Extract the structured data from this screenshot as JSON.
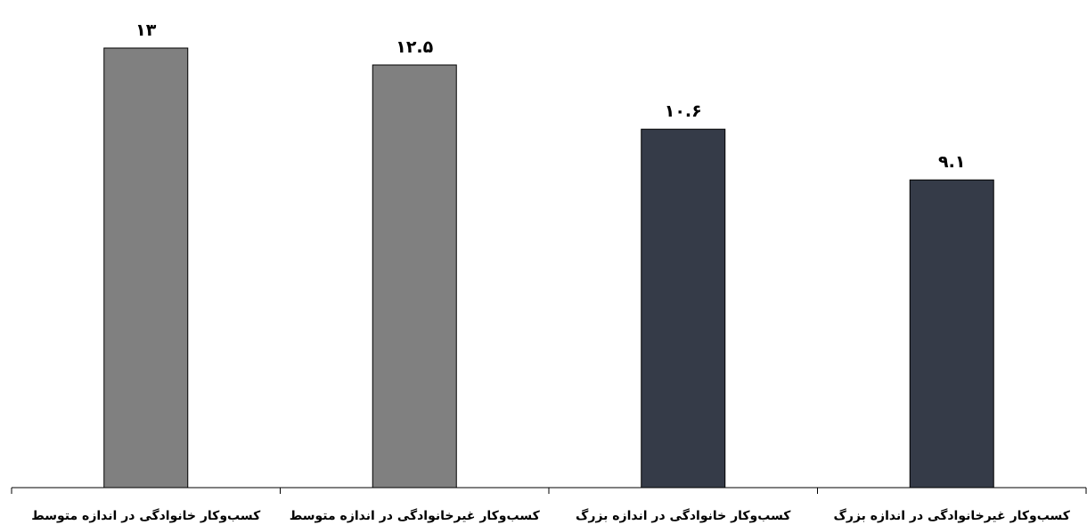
{
  "chart_data": {
    "type": "bar",
    "categories": [
      "کسب‌وکار خانوادگی در اندازه متوسط",
      "کسب‌وکار غیرخانوادگی در اندازه متوسط",
      "کسب‌وکار خانوادگی در اندازه بزرگ",
      "کسب‌وکار غیرخانوادگی در اندازه بزرگ"
    ],
    "values": [
      13,
      12.5,
      10.6,
      9.1
    ],
    "value_labels": [
      "۱۳",
      "۱۲.۵",
      "۱۰.۶",
      "۹.۱"
    ],
    "bar_colors": [
      "#808080",
      "#808080",
      "#353b48",
      "#353b48"
    ],
    "ylim": [
      0,
      13.5
    ],
    "grid": false,
    "legend": "none",
    "title": "",
    "xlabel": "",
    "ylabel": ""
  }
}
